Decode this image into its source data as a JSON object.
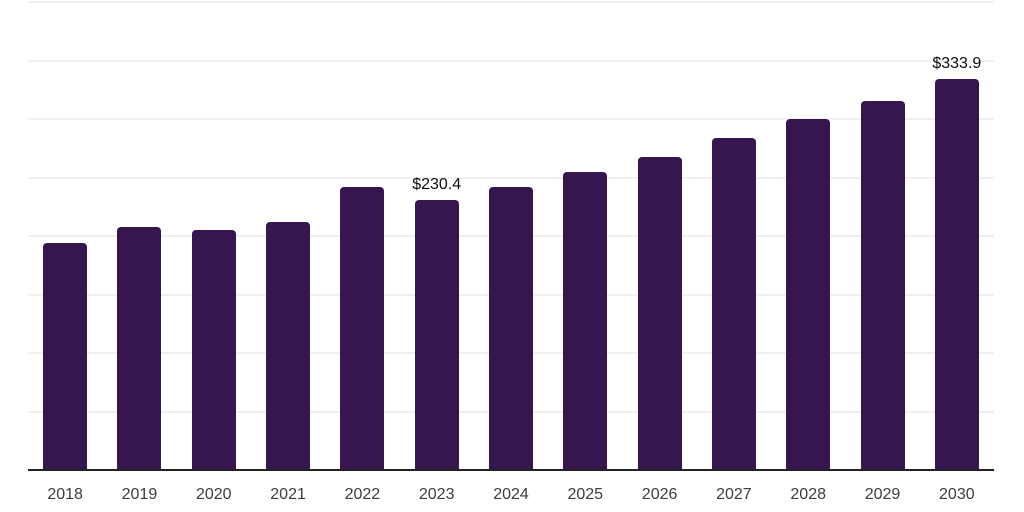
{
  "chart_data": {
    "type": "bar",
    "title": "",
    "xlabel": "",
    "ylabel": "",
    "categories": [
      "2018",
      "2019",
      "2020",
      "2021",
      "2022",
      "2023",
      "2024",
      "2025",
      "2026",
      "2027",
      "2028",
      "2029",
      "2030"
    ],
    "values": [
      194.3,
      208.0,
      205.1,
      212.2,
      241.6,
      230.4,
      242.2,
      254.7,
      267.8,
      284.0,
      299.8,
      315.7,
      333.9
    ],
    "data_labels": [
      "",
      "",
      "",
      "",
      "",
      "$230.4",
      "",
      "",
      "",
      "",
      "",
      "",
      "$333.9"
    ],
    "ylim": [
      0,
      400
    ],
    "grid": true,
    "grid_step": 50,
    "legend": false,
    "y_axis_labels_visible": false,
    "colors": {
      "bar": "#371650",
      "gridline": "#f0f0f0",
      "axis": "#222222",
      "value_label": "#0d0d0d",
      "tick_label": "#3d3d3d",
      "background": "#ffffff"
    }
  }
}
